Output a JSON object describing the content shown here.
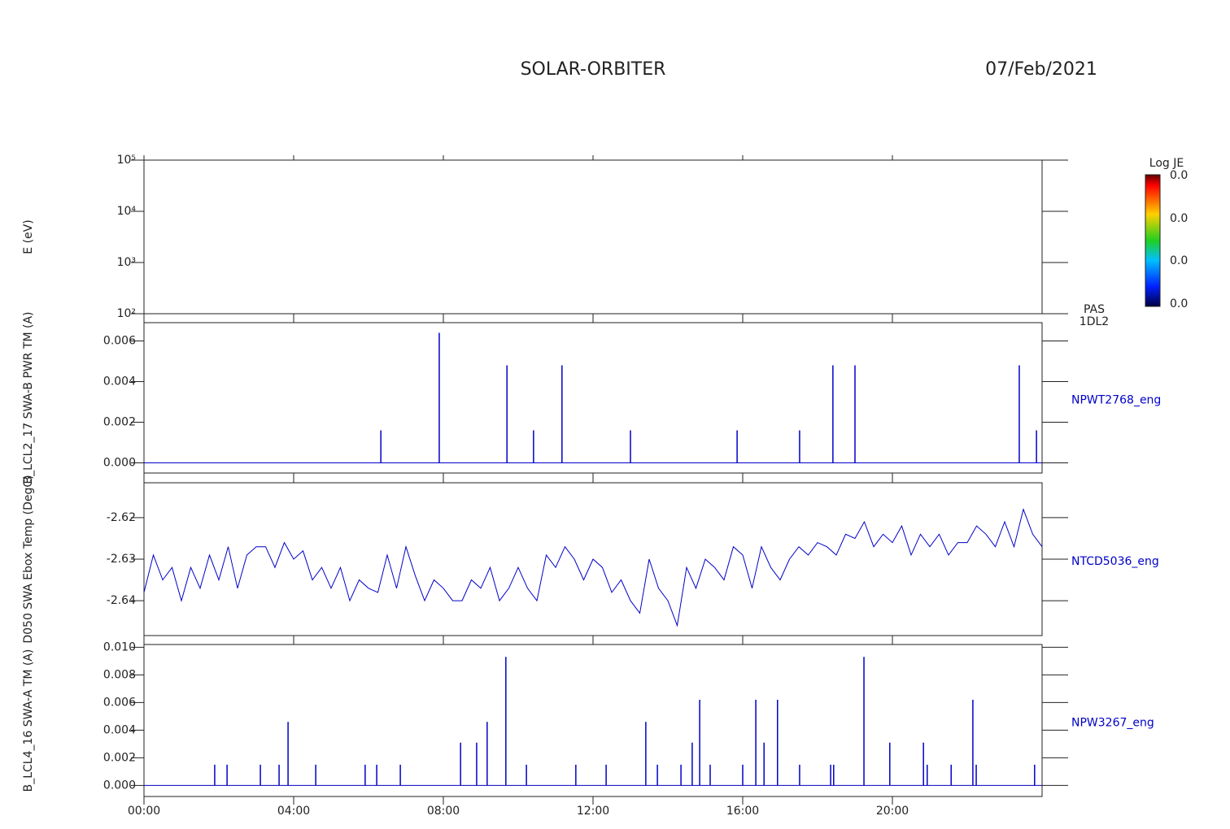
{
  "header": {
    "title": "SOLAR-ORBITER",
    "date": "07/Feb/2021",
    "colorbar": {
      "title": "Log JE",
      "labels": [
        "0.0",
        "0.0",
        "0.0",
        "0.0"
      ]
    },
    "instrument": [
      "PAS",
      "1DL2"
    ]
  },
  "chart_data": [
    {
      "type": "spectrogram",
      "ylabel": "E (eV)",
      "ylog": true,
      "ylim": [
        100,
        100000
      ],
      "yticks": [
        {
          "value": 100,
          "label": "10²"
        },
        {
          "value": 1000,
          "label": "10³"
        },
        {
          "value": 10000,
          "label": "10⁴"
        },
        {
          "value": 100000,
          "label": "10⁵"
        }
      ]
    },
    {
      "type": "spike",
      "ylabel": "B_LCL2_17 SWA-B PWR TM (A)",
      "ylim": [
        -0.0005,
        0.0069
      ],
      "yticks": [
        {
          "value": 0,
          "label": "0.000"
        },
        {
          "value": 0.002,
          "label": "0.002"
        },
        {
          "value": 0.004,
          "label": "0.004"
        },
        {
          "value": 0.006,
          "label": "0.006"
        }
      ],
      "series": [
        {
          "name": "NPWT2768_eng",
          "color": "#0000c8",
          "x": [
            6.33,
            7.89,
            9.7,
            10.41,
            11.17,
            13.0,
            15.85,
            17.52,
            18.41,
            19.0,
            23.39,
            23.85
          ],
          "values": [
            0.0016,
            0.0064,
            0.0048,
            0.0016,
            0.0048,
            0.0016,
            0.0016,
            0.0016,
            0.0048,
            0.0048,
            0.0048,
            0.0016
          ]
        }
      ]
    },
    {
      "type": "line",
      "ylabel": "D050 SWA Ebox Temp (DegC)",
      "ylim": [
        -2.6484,
        -2.6116
      ],
      "yticks": [
        -2.64,
        -2.63,
        -2.62
      ],
      "series": [
        {
          "name": "NTCD5036_eng",
          "color": "#0000c8",
          "x": [
            0,
            0.25,
            0.5,
            0.75,
            1,
            1.25,
            1.5,
            1.75,
            2,
            2.25,
            2.5,
            2.75,
            3,
            3.25,
            3.5,
            3.75,
            4,
            4.25,
            4.5,
            4.75,
            5,
            5.25,
            5.5,
            5.75,
            6,
            6.25,
            6.5,
            6.75,
            7,
            7.25,
            7.5,
            7.75,
            8,
            8.25,
            8.5,
            8.75,
            9,
            9.25,
            9.5,
            9.75,
            10,
            10.25,
            10.5,
            10.75,
            11,
            11.25,
            11.5,
            11.75,
            12,
            12.25,
            12.5,
            12.75,
            13,
            13.25,
            13.5,
            13.75,
            14,
            14.25,
            14.5,
            14.75,
            15,
            15.25,
            15.5,
            15.75,
            16,
            16.25,
            16.5,
            16.75,
            17,
            17.25,
            17.5,
            17.75,
            18,
            18.25,
            18.5,
            18.75,
            19,
            19.25,
            19.5,
            19.75,
            20,
            20.25,
            20.5,
            20.75,
            21,
            21.25,
            21.5,
            21.75,
            22,
            22.25,
            22.5,
            22.75,
            23,
            23.25,
            23.5,
            23.75,
            24
          ],
          "values": [
            -2.638,
            -2.629,
            -2.635,
            -2.632,
            -2.64,
            -2.632,
            -2.637,
            -2.629,
            -2.635,
            -2.627,
            -2.637,
            -2.629,
            -2.627,
            -2.627,
            -2.632,
            -2.626,
            -2.63,
            -2.628,
            -2.635,
            -2.632,
            -2.637,
            -2.632,
            -2.64,
            -2.635,
            -2.637,
            -2.638,
            -2.629,
            -2.637,
            -2.627,
            -2.634,
            -2.64,
            -2.635,
            -2.637,
            -2.64,
            -2.64,
            -2.635,
            -2.637,
            -2.632,
            -2.64,
            -2.637,
            -2.632,
            -2.637,
            -2.64,
            -2.629,
            -2.632,
            -2.627,
            -2.63,
            -2.635,
            -2.63,
            -2.632,
            -2.638,
            -2.635,
            -2.64,
            -2.643,
            -2.63,
            -2.637,
            -2.64,
            -2.646,
            -2.632,
            -2.637,
            -2.63,
            -2.632,
            -2.635,
            -2.627,
            -2.629,
            -2.637,
            -2.627,
            -2.632,
            -2.635,
            -2.63,
            -2.627,
            -2.629,
            -2.626,
            -2.627,
            -2.629,
            -2.624,
            -2.625,
            -2.621,
            -2.627,
            -2.624,
            -2.626,
            -2.622,
            -2.629,
            -2.624,
            -2.627,
            -2.624,
            -2.629,
            -2.626,
            -2.626,
            -2.622,
            -2.624,
            -2.627,
            -2.621,
            -2.627,
            -2.618,
            -2.624,
            -2.627
          ]
        }
      ]
    },
    {
      "type": "spike",
      "ylabel": "B_LCL4_16 SWA-A TM (A)",
      "ylim": [
        -0.0008,
        0.0102
      ],
      "yticks": [
        {
          "value": 0,
          "label": "0.000"
        },
        {
          "value": 0.002,
          "label": "0.002"
        },
        {
          "value": 0.004,
          "label": "0.004"
        },
        {
          "value": 0.006,
          "label": "0.006"
        },
        {
          "value": 0.008,
          "label": "0.008"
        },
        {
          "value": 0.01,
          "label": "0.010"
        }
      ],
      "xlim": [
        0,
        24
      ],
      "xticks": [
        {
          "value": 0,
          "label": "00:00"
        },
        {
          "value": 4,
          "label": "04:00"
        },
        {
          "value": 8,
          "label": "08:00"
        },
        {
          "value": 12,
          "label": "12:00"
        },
        {
          "value": 16,
          "label": "16:00"
        },
        {
          "value": 20,
          "label": "20:00"
        }
      ],
      "series": [
        {
          "name": "NPW3267_eng",
          "color": "#0000c8",
          "x": [
            1.89,
            2.22,
            3.11,
            3.61,
            3.85,
            4.59,
            5.91,
            6.22,
            6.85,
            8.46,
            8.89,
            9.17,
            9.67,
            10.22,
            11.54,
            12.35,
            13.41,
            13.72,
            14.35,
            14.65,
            14.85,
            15.13,
            16.0,
            16.35,
            16.57,
            16.93,
            17.52,
            18.35,
            18.43,
            19.24,
            19.93,
            20.83,
            20.93,
            21.57,
            22.15,
            22.24,
            23.8
          ],
          "values": [
            0.0015,
            0.0015,
            0.0015,
            0.0015,
            0.0046,
            0.0015,
            0.0015,
            0.0015,
            0.0015,
            0.0031,
            0.0031,
            0.0046,
            0.0093,
            0.0015,
            0.0015,
            0.0015,
            0.0046,
            0.0015,
            0.0015,
            0.0031,
            0.0062,
            0.0015,
            0.0015,
            0.0062,
            0.0031,
            0.0062,
            0.0015,
            0.0015,
            0.0015,
            0.0093,
            0.0031,
            0.0031,
            0.0015,
            0.0015,
            0.0062,
            0.0015,
            0.0015
          ]
        }
      ]
    }
  ]
}
